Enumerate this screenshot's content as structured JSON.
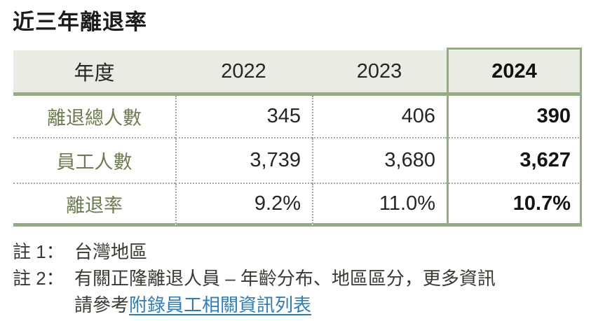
{
  "title": "近三年離退率",
  "colors": {
    "accent_green": "#95ab82",
    "header_bg": "#e9ece3",
    "row_label_green": "#6e7b4f",
    "link_blue": "#2d7dbe"
  },
  "table": {
    "header": {
      "label": "年度",
      "years": [
        "2022",
        "2023",
        "2024"
      ]
    },
    "rows": [
      {
        "label": "離退總人數",
        "values": [
          "345",
          "406",
          "390"
        ]
      },
      {
        "label": "員工人數",
        "values": [
          "3,739",
          "3,680",
          "3,627"
        ]
      },
      {
        "label": "離退率",
        "values": [
          "9.2%",
          "11.0%",
          "10.7%"
        ]
      }
    ],
    "highlighted_year": "2024"
  },
  "notes": {
    "note1": {
      "label": "註 1：",
      "text": "台灣地區"
    },
    "note2": {
      "label": "註 2：",
      "line1": "有關正隆離退人員 – 年齡分布、地區區分，更多資訊",
      "line2_prefix": "請參考",
      "link_text": "附錄員工相關資訊列表"
    }
  }
}
